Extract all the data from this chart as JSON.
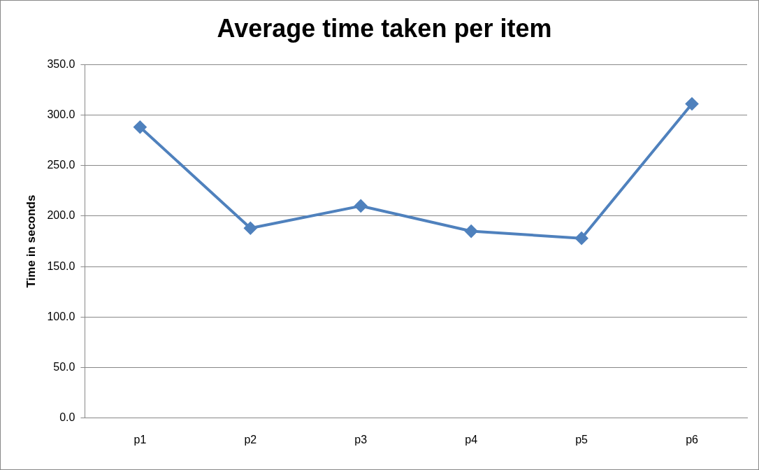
{
  "chart_data": {
    "type": "line",
    "title": "Average time taken per item",
    "ylabel": "Time in seconds",
    "categories": [
      "p1",
      "p2",
      "p3",
      "p4",
      "p5",
      "p6"
    ],
    "series": [
      {
        "color": "#4f81bd",
        "values": [
          288,
          188,
          210,
          185,
          178,
          311
        ]
      }
    ],
    "ylim": [
      0,
      350
    ],
    "yticks": [
      {
        "value": 0,
        "label": "0.0"
      },
      {
        "value": 50,
        "label": "50.0"
      },
      {
        "value": 100,
        "label": "100.0"
      },
      {
        "value": 150,
        "label": "150.0"
      },
      {
        "value": 200,
        "label": "200.0"
      },
      {
        "value": 250,
        "label": "250.0"
      },
      {
        "value": 300,
        "label": "300.0"
      },
      {
        "value": 350,
        "label": "350.0"
      }
    ],
    "grid": "y",
    "legend": false,
    "marker": "diamond",
    "line_style": "solid"
  }
}
